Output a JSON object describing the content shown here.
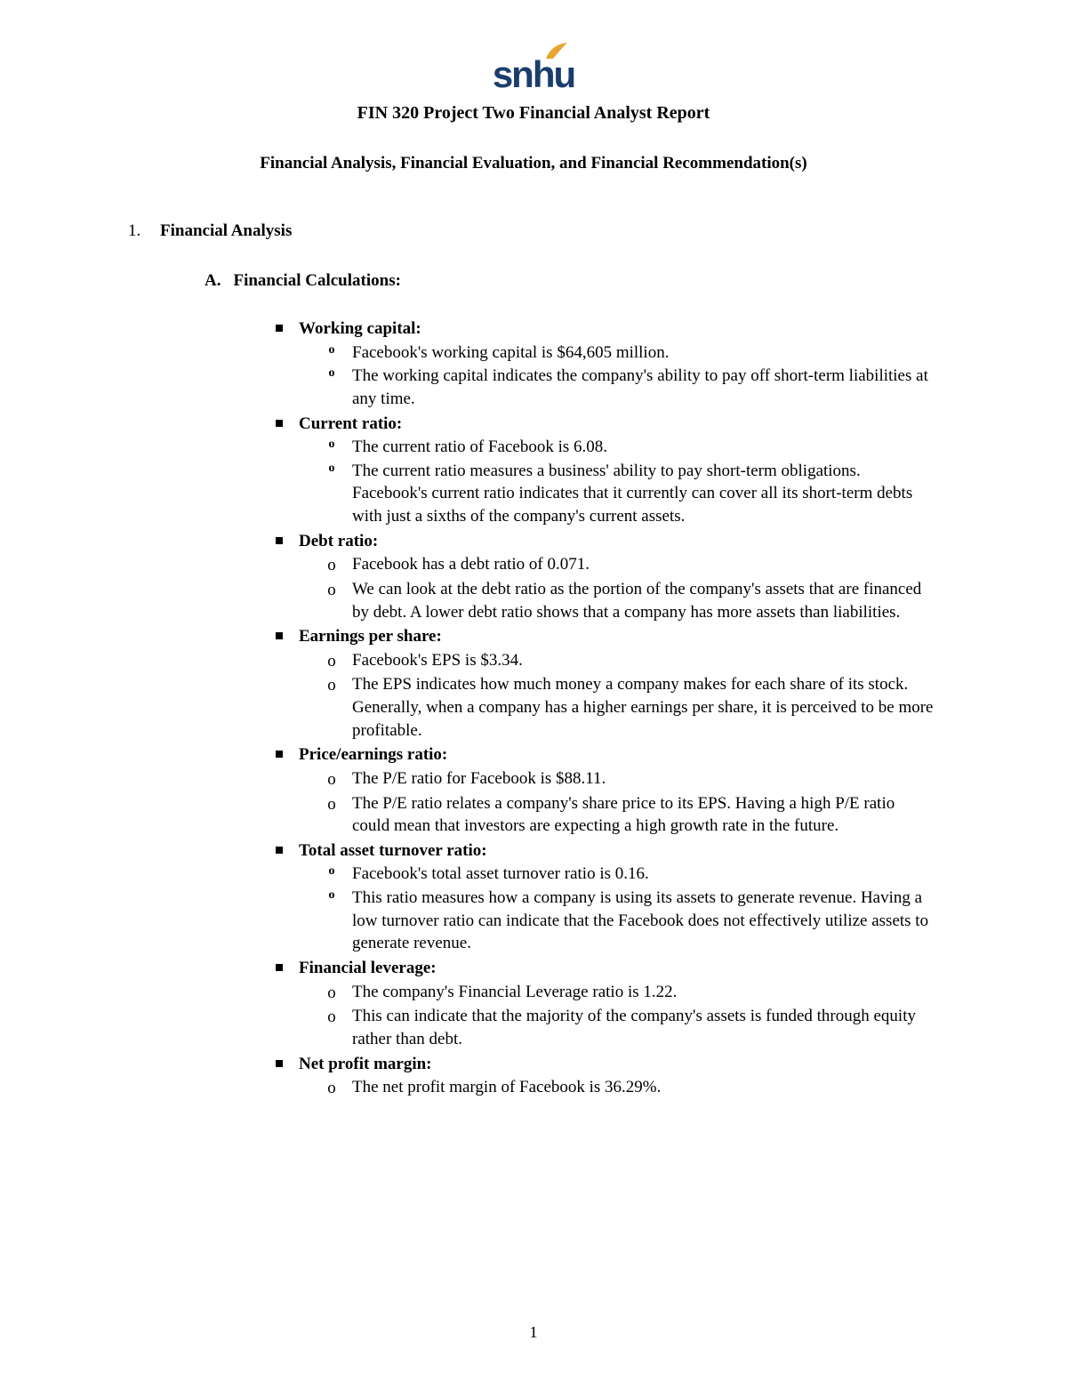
{
  "logo": {
    "text": "snhu",
    "text_color": "#1a3d6d",
    "flame_color": "#e8a532"
  },
  "title": "FIN 320 Project Two Financial Analyst Report",
  "subtitle": "Financial Analysis, Financial Evaluation, and Financial Recommendation(s)",
  "section": {
    "number": "1.",
    "heading": "Financial Analysis"
  },
  "subsection": {
    "label": "A.",
    "heading": "Financial Calculations:"
  },
  "items": [
    {
      "title": "Working capital:",
      "bullet_style": "bold-o",
      "points": [
        "Facebook's working capital is $64,605 million.",
        "The working capital indicates the company's ability to pay off short-term liabilities at any time."
      ]
    },
    {
      "title": "Current ratio:",
      "bullet_style": "bold-o",
      "points": [
        "The current ratio of Facebook is 6.08.",
        "The current ratio measures a business' ability to pay short-term obligations. Facebook's current ratio indicates that it currently can cover all its short-term debts with just a sixths of the company's current assets."
      ]
    },
    {
      "title": "Debt ratio:",
      "bullet_style": "plain-o",
      "points": [
        "Facebook has a debt ratio of 0.071.",
        "We can look at the debt ratio as the portion of the company's assets that are financed by debt. A lower debt ratio shows that a company has more assets than liabilities."
      ]
    },
    {
      "title": "Earnings per share:",
      "bullet_style": "plain-o",
      "points": [
        "Facebook's EPS is $3.34.",
        "The EPS indicates how much money a company makes for each share of its stock. Generally, when a company has a higher earnings per share, it is perceived to be more profitable."
      ]
    },
    {
      "title": "Price/earnings ratio:",
      "bullet_style": "plain-o",
      "points": [
        "The P/E ratio for Facebook is $88.11.",
        "The P/E ratio relates a company's share price to its EPS. Having a high P/E ratio could mean that investors are expecting a high growth rate in the future."
      ]
    },
    {
      "title": "Total asset turnover ratio:",
      "bullet_style": "bold-o",
      "points": [
        "Facebook's total asset turnover ratio is 0.16.",
        "This ratio measures how a company is using its assets to generate revenue. Having a low turnover ratio can indicate that the Facebook does not effectively utilize assets to generate revenue."
      ]
    },
    {
      "title": "Financial leverage:",
      "bullet_style": "plain-o",
      "points": [
        "The company's Financial Leverage ratio is 1.22.",
        "This can indicate that the majority of the company's assets is funded through equity rather than debt."
      ]
    },
    {
      "title": "Net profit margin:",
      "bullet_style": "plain-o",
      "points": [
        "The net profit margin of Facebook is 36.29%."
      ]
    }
  ],
  "page_number": "1"
}
